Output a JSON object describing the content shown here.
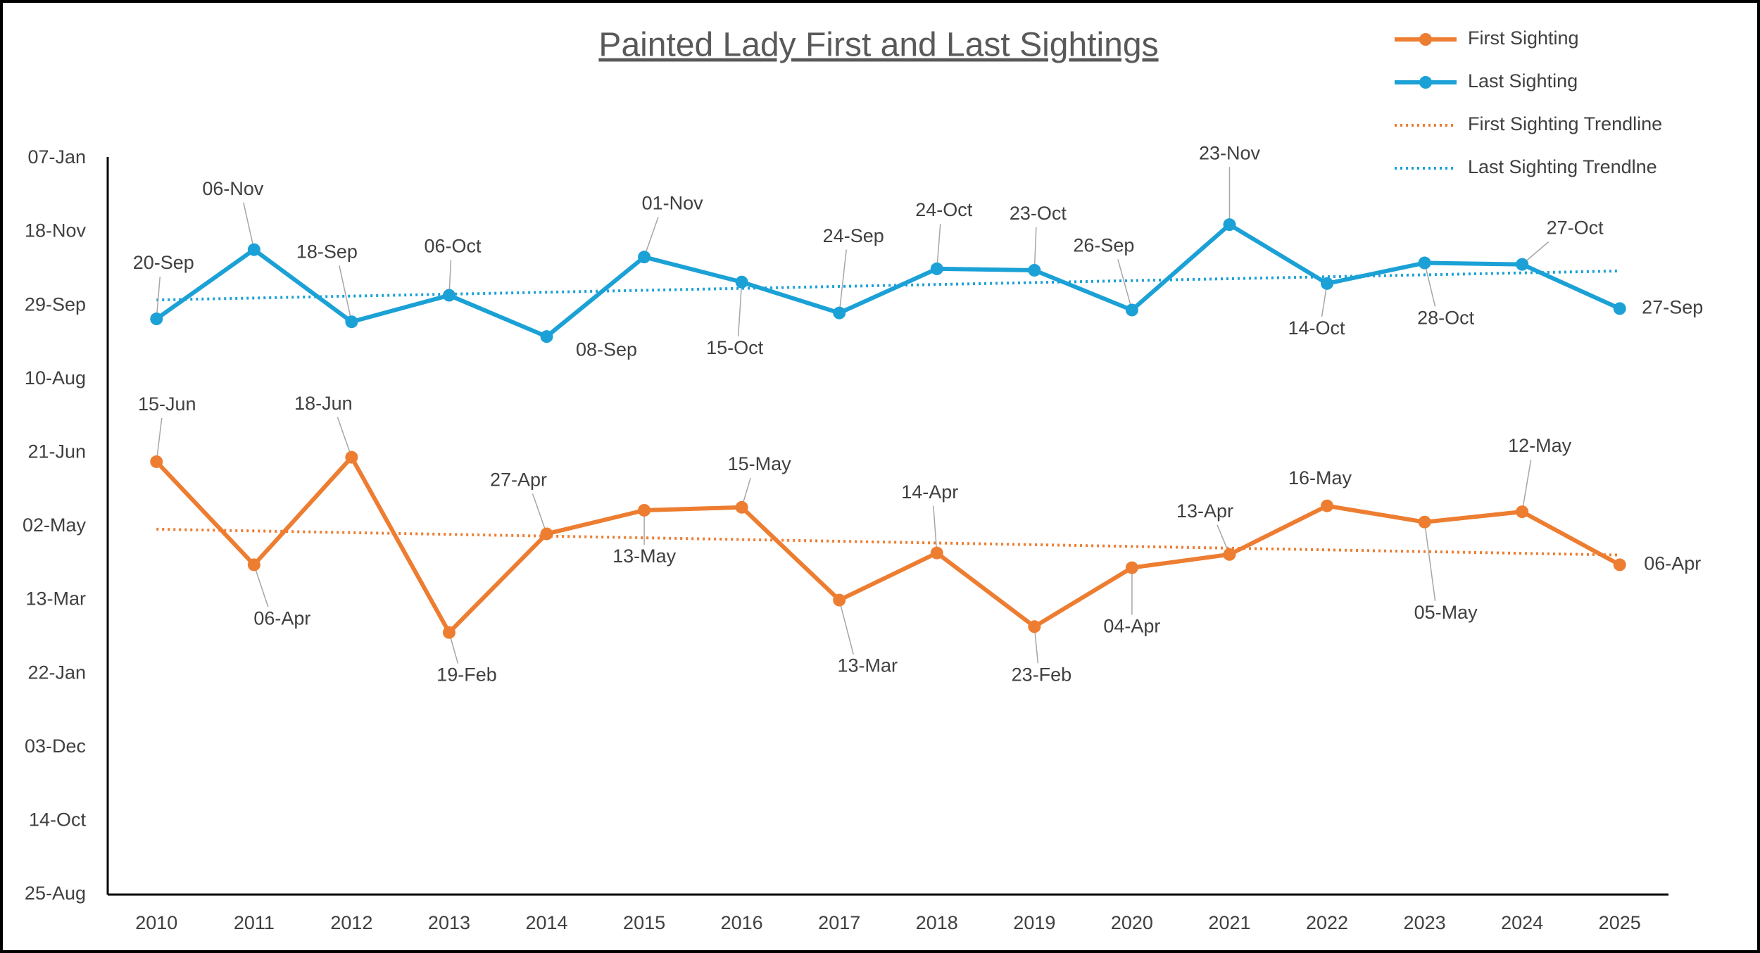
{
  "chart_data": {
    "type": "line",
    "title": "Painted Lady First and Last Sightings",
    "categories": [
      "2010",
      "2011",
      "2012",
      "2013",
      "2014",
      "2015",
      "2016",
      "2017",
      "2018",
      "2019",
      "2020",
      "2021",
      "2022",
      "2023",
      "2024",
      "2025"
    ],
    "series": [
      {
        "name": "First Sighting",
        "color": "#ed7d31",
        "values": [
          294,
          224,
          297,
          178,
          245,
          261,
          263,
          200,
          232,
          182,
          222,
          231,
          264,
          253,
          260,
          224
        ],
        "value_labels": [
          "15-Jun",
          "06-Apr",
          "18-Jun",
          "19-Feb",
          "27-Apr",
          "13-May",
          "15-May",
          "13-Mar",
          "14-Apr",
          "23-Feb",
          "04-Apr",
          "13-Apr",
          "16-May",
          "05-May",
          "12-May",
          "06-Apr"
        ],
        "trendline": {
          "name": "First Sighting Trendline",
          "color": "#ed7d31"
        }
      },
      {
        "name": "Last Sighting",
        "color": "#1ba1d6",
        "values": [
          391,
          438,
          389,
          407,
          379,
          433,
          416,
          395,
          425,
          424,
          397,
          455,
          415,
          429,
          428,
          398
        ],
        "value_labels": [
          "20-Sep",
          "06-Nov",
          "18-Sep",
          "06-Oct",
          "08-Sep",
          "01-Nov",
          "15-Oct",
          "24-Sep",
          "24-Oct",
          "23-Oct",
          "26-Sep",
          "23-Nov",
          "14-Oct",
          "28-Oct",
          "27-Oct",
          "27-Sep"
        ],
        "trendline": {
          "name": "Last Sighting Trendlne",
          "color": "#1ba1d6"
        }
      }
    ],
    "ylim": [
      0,
      500
    ],
    "yticks": [
      {
        "value": 0,
        "label": "25-Aug"
      },
      {
        "value": 50,
        "label": "14-Oct"
      },
      {
        "value": 100,
        "label": "03-Dec"
      },
      {
        "value": 150,
        "label": "22-Jan"
      },
      {
        "value": 200,
        "label": "13-Mar"
      },
      {
        "value": 250,
        "label": "02-May"
      },
      {
        "value": 300,
        "label": "21-Jun"
      },
      {
        "value": 350,
        "label": "10-Aug"
      },
      {
        "value": 400,
        "label": "29-Sep"
      },
      {
        "value": 450,
        "label": "18-Nov"
      },
      {
        "value": 500,
        "label": "07-Jan"
      }
    ],
    "grid": false,
    "legend": "top-right"
  }
}
